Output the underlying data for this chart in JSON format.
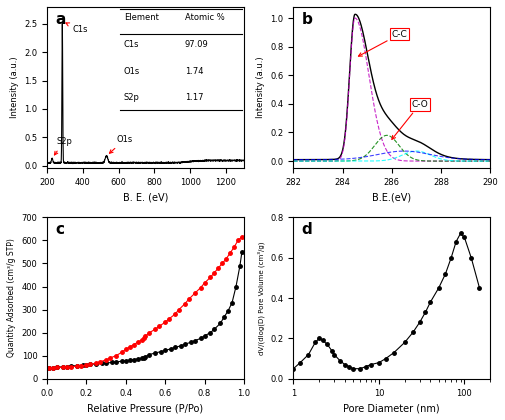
{
  "panel_a": {
    "label": "a",
    "xlabel": "B. E. (eV)",
    "ylabel": "Intensity (a.u.)",
    "xlim": [
      200,
      1300
    ],
    "table": {
      "headers": [
        "Element",
        "Atomic %"
      ],
      "rows": [
        [
          "C1s",
          "97.09"
        ],
        [
          "O1s",
          "1.74"
        ],
        [
          "S2p",
          "1.17"
        ]
      ]
    },
    "annotations": [
      "C1s",
      "O1s",
      "S2p"
    ]
  },
  "panel_b": {
    "label": "b",
    "xlabel": "B.E.(eV)",
    "ylabel": "Intensity (a.u.)",
    "xlim": [
      282,
      290
    ],
    "annotations": [
      "C-C",
      "C-O"
    ]
  },
  "panel_c": {
    "label": "c",
    "xlabel": "Relative Pressure (P/Po)",
    "ylabel": "Quantity Adsorbed (cm³/g STP)",
    "xlim": [
      0.0,
      1.0
    ],
    "ylim": [
      0,
      700
    ]
  },
  "panel_d": {
    "label": "d",
    "xlabel": "Pore Diameter (nm)",
    "ylabel": "dV/(dlog(D) Pore Volume (cm³/g)",
    "xlim_log": [
      1,
      200
    ],
    "ylim": [
      0.0,
      0.8
    ]
  }
}
